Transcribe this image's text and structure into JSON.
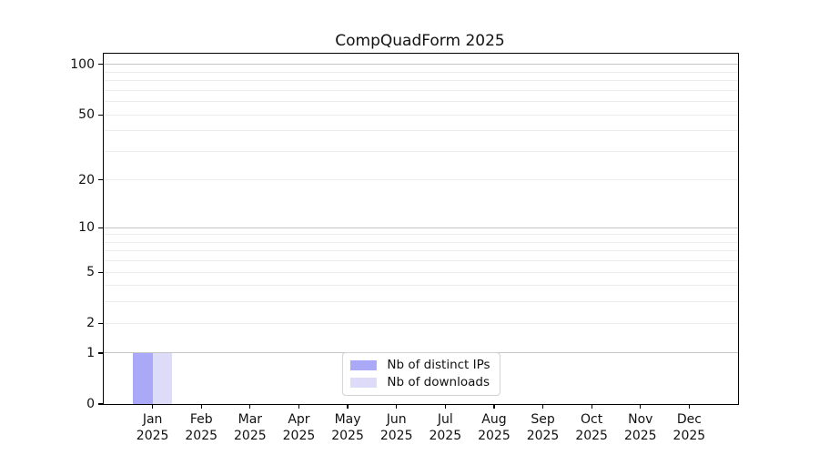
{
  "chart_data": {
    "type": "bar",
    "title": "CompQuadForm 2025",
    "categories": [
      "Jan 2025",
      "Feb 2025",
      "Mar 2025",
      "Apr 2025",
      "May 2025",
      "Jun 2025",
      "Jul 2025",
      "Aug 2025",
      "Sep 2025",
      "Oct 2025",
      "Nov 2025",
      "Dec 2025"
    ],
    "series": [
      {
        "name": "Nb of distinct IPs",
        "color": "#a9a9f7",
        "values": [
          1,
          0,
          0,
          0,
          0,
          0,
          0,
          0,
          0,
          0,
          0,
          0
        ]
      },
      {
        "name": "Nb of downloads",
        "color": "#dcdcf9",
        "values": [
          1,
          0,
          0,
          0,
          0,
          0,
          0,
          0,
          0,
          0,
          0,
          0
        ]
      }
    ],
    "xlabel": "",
    "ylabel": "",
    "yscale": "log1p",
    "ylim": [
      0,
      116
    ],
    "ytick_values": [
      0,
      1,
      2,
      5,
      10,
      20,
      50,
      100
    ],
    "grid": "horizontal",
    "legend_position": "lower center inside"
  },
  "colors": {
    "bar_distinct_ips": "#a9a9f7",
    "bar_downloads": "#dcdcf9",
    "grid_major": "#c6c6c6",
    "grid_minor": "#ececec",
    "axis": "#000000",
    "legend_border": "#d2d2d2",
    "text": "#111111"
  }
}
